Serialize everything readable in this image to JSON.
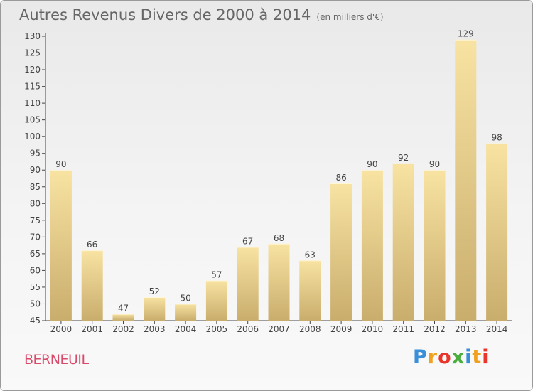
{
  "title": "Autres Revenus Divers de 2000 à 2014",
  "title_unit": "(en milliers d'€)",
  "commune": "BERNEUIL",
  "logo": {
    "letters": [
      "P",
      "r",
      "o",
      "x",
      "i",
      "t",
      "i"
    ],
    "colors": [
      "#3a8fd9",
      "#f0a21e",
      "#e8362d",
      "#4cae3c",
      "#3a8fd9",
      "#f0a21e",
      "#e8362d"
    ]
  },
  "colors": {
    "bar_light": "#f8e3a2",
    "bar_dark": "#c9ad6d",
    "commune": "#d94a6a"
  },
  "chart_data": {
    "type": "bar",
    "categories": [
      "2000",
      "2001",
      "2002",
      "2003",
      "2004",
      "2005",
      "2006",
      "2007",
      "2008",
      "2009",
      "2010",
      "2011",
      "2012",
      "2013",
      "2014"
    ],
    "values": [
      90,
      66,
      47,
      52,
      50,
      57,
      67,
      68,
      63,
      86,
      90,
      92,
      90,
      129,
      98
    ],
    "ylim": [
      45,
      130
    ],
    "yticks": [
      45,
      50,
      55,
      60,
      65,
      70,
      75,
      80,
      85,
      90,
      95,
      100,
      105,
      110,
      115,
      120,
      125,
      130
    ],
    "grid": false,
    "data_labels": true
  }
}
